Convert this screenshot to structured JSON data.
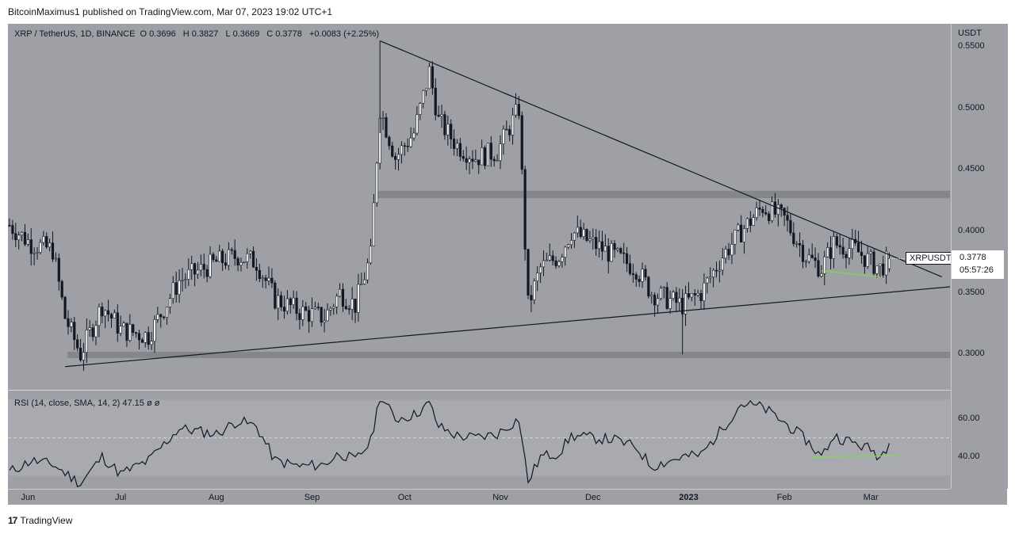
{
  "header": {
    "published_text": "BitcoinMaximus1 published on TradingView.com, Mar 07, 2023 19:02 UTC+1"
  },
  "legend": {
    "symbol": "XRP / TetherUS, 1D, BINANCE",
    "o_label": "O",
    "o_value": "0.3696",
    "h_label": "H",
    "h_value": "0.3827",
    "l_label": "L",
    "l_value": "0.3669",
    "c_label": "C",
    "c_value": "0.3778",
    "change": "+0.0083 (+2.25%)"
  },
  "price_axis": {
    "currency": "USDT",
    "ticks": [
      "0.5500",
      "0.5000",
      "0.4500",
      "0.4000",
      "0.3500",
      "0.3000"
    ]
  },
  "price_tag": {
    "symbol": "XRPUSDT",
    "price": "0.3778",
    "countdown": "05:57:26"
  },
  "rsi": {
    "legend": "RSI (14, close, SMA, 14, 2)",
    "value": "47.15",
    "extra": "ø  ø",
    "ticks": [
      "60.00",
      "40.00"
    ]
  },
  "time_axis": {
    "labels": [
      "Jun",
      "Jul",
      "Aug",
      "Sep",
      "Oct",
      "Nov",
      "Dec",
      "2023",
      "Feb",
      "Mar"
    ]
  },
  "footer": {
    "brand_logo": "17",
    "brand_text": "TradingView"
  },
  "colors": {
    "background": "#9ea0a5",
    "candle": "#131722",
    "trendline": "#131722",
    "support_band": "#7d7f84",
    "divergence": "#7cdf4a"
  },
  "chart_data": [
    {
      "type": "candlestick",
      "title": "XRP / TetherUS, 1D, BINANCE",
      "ylim": [
        0.275,
        0.565
      ],
      "y_ticks": [
        0.55,
        0.5,
        0.45,
        0.4,
        0.35,
        0.3
      ],
      "x_labels": [
        "Jun",
        "Jul",
        "Aug",
        "Sep",
        "Oct",
        "Nov",
        "Dec",
        "2023",
        "Feb",
        "Mar"
      ],
      "key_path": [
        {
          "date": "2022-05-26",
          "price": 0.405
        },
        {
          "date": "2022-06-02",
          "price": 0.39
        },
        {
          "date": "2022-06-09",
          "price": 0.385
        },
        {
          "date": "2022-06-13",
          "price": 0.33
        },
        {
          "date": "2022-06-18",
          "price": 0.3
        },
        {
          "date": "2022-06-25",
          "price": 0.34
        },
        {
          "date": "2022-07-01",
          "price": 0.32
        },
        {
          "date": "2022-07-10",
          "price": 0.315
        },
        {
          "date": "2022-07-20",
          "price": 0.36
        },
        {
          "date": "2022-08-01",
          "price": 0.375
        },
        {
          "date": "2022-08-08",
          "price": 0.38
        },
        {
          "date": "2022-08-14",
          "price": 0.375
        },
        {
          "date": "2022-08-20",
          "price": 0.345
        },
        {
          "date": "2022-08-28",
          "price": 0.335
        },
        {
          "date": "2022-09-05",
          "price": 0.33
        },
        {
          "date": "2022-09-10",
          "price": 0.35
        },
        {
          "date": "2022-09-15",
          "price": 0.34
        },
        {
          "date": "2022-09-20",
          "price": 0.38
        },
        {
          "date": "2022-09-23",
          "price": 0.5
        },
        {
          "date": "2022-09-28",
          "price": 0.46
        },
        {
          "date": "2022-10-04",
          "price": 0.48
        },
        {
          "date": "2022-10-09",
          "price": 0.53
        },
        {
          "date": "2022-10-12",
          "price": 0.49
        },
        {
          "date": "2022-10-18",
          "price": 0.47
        },
        {
          "date": "2022-10-24",
          "price": 0.46
        },
        {
          "date": "2022-10-31",
          "price": 0.465
        },
        {
          "date": "2022-11-07",
          "price": 0.5
        },
        {
          "date": "2022-11-09",
          "price": 0.39
        },
        {
          "date": "2022-11-10",
          "price": 0.34
        },
        {
          "date": "2022-11-14",
          "price": 0.37
        },
        {
          "date": "2022-11-20",
          "price": 0.38
        },
        {
          "date": "2022-11-24",
          "price": 0.4
        },
        {
          "date": "2022-12-01",
          "price": 0.39
        },
        {
          "date": "2022-12-08",
          "price": 0.38
        },
        {
          "date": "2022-12-15",
          "price": 0.37
        },
        {
          "date": "2022-12-20",
          "price": 0.35
        },
        {
          "date": "2022-12-30",
          "price": 0.34
        },
        {
          "date": "2023-01-05",
          "price": 0.35
        },
        {
          "date": "2023-01-12",
          "price": 0.38
        },
        {
          "date": "2023-01-18",
          "price": 0.4
        },
        {
          "date": "2023-01-25",
          "price": 0.42
        },
        {
          "date": "2023-02-01",
          "price": 0.41
        },
        {
          "date": "2023-02-08",
          "price": 0.38
        },
        {
          "date": "2023-02-13",
          "price": 0.37
        },
        {
          "date": "2023-02-17",
          "price": 0.39
        },
        {
          "date": "2023-02-24",
          "price": 0.385
        },
        {
          "date": "2023-03-01",
          "price": 0.375
        },
        {
          "date": "2023-03-04",
          "price": 0.37
        },
        {
          "date": "2023-03-07",
          "price": 0.3778
        }
      ],
      "last": {
        "open": 0.3696,
        "high": 0.3827,
        "low": 0.3669,
        "close": 0.3778
      }
    },
    {
      "type": "line",
      "title": "RSI (14, close, SMA, 14, 2)",
      "ylim": [
        24,
        74
      ],
      "y_ticks": [
        60,
        40
      ],
      "key_path": [
        {
          "date": "2022-05-26",
          "value": 32
        },
        {
          "date": "2022-06-02",
          "value": 38
        },
        {
          "date": "2022-06-09",
          "value": 36
        },
        {
          "date": "2022-06-18",
          "value": 26
        },
        {
          "date": "2022-06-25",
          "value": 40
        },
        {
          "date": "2022-07-01",
          "value": 31
        },
        {
          "date": "2022-07-10",
          "value": 38
        },
        {
          "date": "2022-07-20",
          "value": 55
        },
        {
          "date": "2022-08-01",
          "value": 52
        },
        {
          "date": "2022-08-08",
          "value": 59
        },
        {
          "date": "2022-08-14",
          "value": 56
        },
        {
          "date": "2022-08-20",
          "value": 38
        },
        {
          "date": "2022-08-28",
          "value": 35
        },
        {
          "date": "2022-09-05",
          "value": 36
        },
        {
          "date": "2022-09-10",
          "value": 42
        },
        {
          "date": "2022-09-15",
          "value": 38
        },
        {
          "date": "2022-09-20",
          "value": 48
        },
        {
          "date": "2022-09-23",
          "value": 72
        },
        {
          "date": "2022-09-28",
          "value": 60
        },
        {
          "date": "2022-10-04",
          "value": 62
        },
        {
          "date": "2022-10-09",
          "value": 68
        },
        {
          "date": "2022-10-12",
          "value": 56
        },
        {
          "date": "2022-10-18",
          "value": 51
        },
        {
          "date": "2022-10-24",
          "value": 50
        },
        {
          "date": "2022-10-31",
          "value": 52
        },
        {
          "date": "2022-11-07",
          "value": 60
        },
        {
          "date": "2022-11-09",
          "value": 38
        },
        {
          "date": "2022-11-10",
          "value": 27
        },
        {
          "date": "2022-11-14",
          "value": 40
        },
        {
          "date": "2022-11-20",
          "value": 42
        },
        {
          "date": "2022-11-24",
          "value": 51
        },
        {
          "date": "2022-12-01",
          "value": 50
        },
        {
          "date": "2022-12-08",
          "value": 49
        },
        {
          "date": "2022-12-15",
          "value": 45
        },
        {
          "date": "2022-12-20",
          "value": 35
        },
        {
          "date": "2022-12-30",
          "value": 40
        },
        {
          "date": "2023-01-05",
          "value": 41
        },
        {
          "date": "2023-01-12",
          "value": 55
        },
        {
          "date": "2023-01-18",
          "value": 68
        },
        {
          "date": "2023-01-25",
          "value": 66
        },
        {
          "date": "2023-02-01",
          "value": 58
        },
        {
          "date": "2023-02-08",
          "value": 49
        },
        {
          "date": "2023-02-13",
          "value": 40
        },
        {
          "date": "2023-02-17",
          "value": 51
        },
        {
          "date": "2023-02-24",
          "value": 47
        },
        {
          "date": "2023-03-01",
          "value": 44
        },
        {
          "date": "2023-03-04",
          "value": 40
        },
        {
          "date": "2023-03-07",
          "value": 47.15
        }
      ]
    }
  ]
}
